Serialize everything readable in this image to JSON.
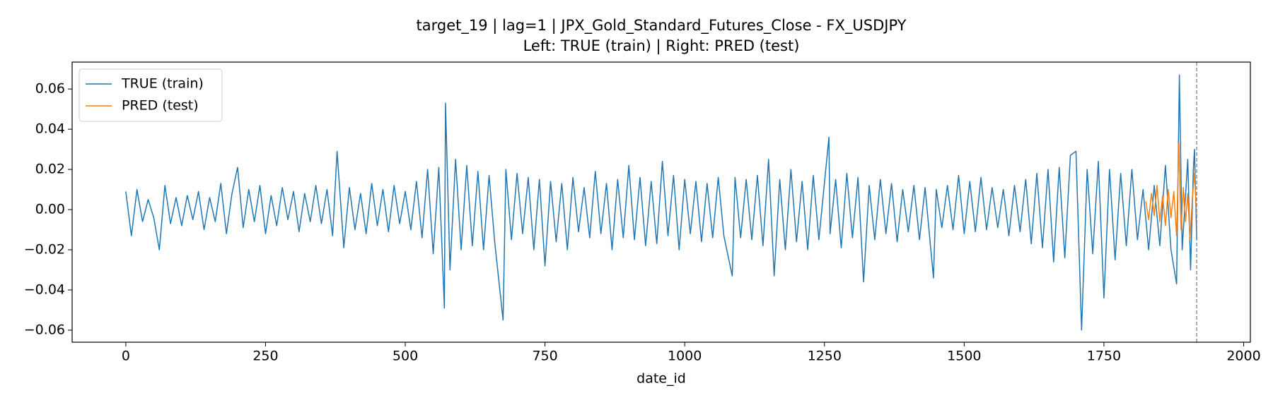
{
  "chart_data": {
    "type": "line",
    "title": "target_19 | lag=1 | JPX_Gold_Standard_Futures_Close - FX_USDJPY",
    "subtitle": "Left: TRUE (train) | Right: PRED (test)",
    "x_label": "date_id",
    "xlim": [
      -96,
      2012
    ],
    "ylim": [
      -0.066,
      0.0734
    ],
    "xticks": [
      0,
      250,
      500,
      750,
      1000,
      1250,
      1500,
      1750,
      2000
    ],
    "yticks": [
      {
        "value": -0.06,
        "label": "−0.06"
      },
      {
        "value": -0.04,
        "label": "−0.04"
      },
      {
        "value": -0.02,
        "label": "−0.02"
      },
      {
        "value": 0,
        "label": "0.00"
      },
      {
        "value": 0.02,
        "label": "0.02"
      },
      {
        "value": 0.04,
        "label": "0.04"
      },
      {
        "value": 0.06,
        "label": "0.06"
      }
    ],
    "legend": "upper left",
    "vline_x": 1916,
    "vline_color": "#7f7f7f",
    "series": [
      {
        "name": "TRUE (train)",
        "color": "#1f77b4",
        "x": [
          0,
          10,
          20,
          30,
          40,
          50,
          60,
          70,
          80,
          90,
          100,
          110,
          120,
          130,
          140,
          150,
          160,
          170,
          180,
          190,
          200,
          210,
          220,
          230,
          240,
          250,
          260,
          270,
          280,
          290,
          300,
          310,
          320,
          330,
          340,
          350,
          360,
          370,
          378,
          390,
          400,
          410,
          420,
          430,
          440,
          450,
          460,
          470,
          480,
          490,
          500,
          510,
          520,
          530,
          540,
          550,
          560,
          570,
          572,
          580,
          590,
          600,
          610,
          620,
          630,
          640,
          650,
          660,
          675,
          680,
          690,
          700,
          710,
          720,
          730,
          740,
          750,
          760,
          770,
          780,
          790,
          800,
          810,
          820,
          830,
          840,
          850,
          860,
          870,
          880,
          890,
          900,
          910,
          920,
          930,
          940,
          950,
          960,
          970,
          980,
          990,
          1000,
          1010,
          1020,
          1030,
          1040,
          1050,
          1060,
          1070,
          1085,
          1090,
          1100,
          1110,
          1120,
          1130,
          1140,
          1150,
          1160,
          1170,
          1180,
          1190,
          1200,
          1210,
          1220,
          1230,
          1240,
          1258,
          1260,
          1270,
          1280,
          1290,
          1300,
          1310,
          1320,
          1330,
          1340,
          1350,
          1360,
          1370,
          1380,
          1390,
          1400,
          1410,
          1420,
          1430,
          1445,
          1450,
          1460,
          1470,
          1480,
          1490,
          1500,
          1510,
          1520,
          1530,
          1540,
          1550,
          1560,
          1570,
          1580,
          1590,
          1600,
          1610,
          1620,
          1630,
          1640,
          1650,
          1660,
          1670,
          1680,
          1690,
          1700,
          1710,
          1720,
          1730,
          1740,
          1750,
          1760,
          1770,
          1780,
          1790,
          1800,
          1810,
          1820,
          1830,
          1840,
          1850,
          1860,
          1870,
          1880,
          1885,
          1890,
          1900,
          1905,
          1910,
          1912,
          1916
        ],
        "values": [
          0.009,
          -0.013,
          0.01,
          -0.006,
          0.005,
          -0.004,
          -0.02,
          0.012,
          -0.007,
          0.006,
          -0.008,
          0.007,
          -0.005,
          0.009,
          -0.01,
          0.006,
          -0.006,
          0.013,
          -0.012,
          0.008,
          0.021,
          -0.009,
          0.01,
          -0.006,
          0.012,
          -0.012,
          0.007,
          -0.008,
          0.011,
          -0.005,
          0.009,
          -0.011,
          0.008,
          -0.006,
          0.012,
          -0.007,
          0.01,
          -0.013,
          0.029,
          -0.019,
          0.011,
          -0.01,
          0.008,
          -0.012,
          0.013,
          -0.008,
          0.01,
          -0.011,
          0.012,
          -0.007,
          0.009,
          -0.01,
          0.014,
          -0.014,
          0.02,
          -0.022,
          0.021,
          -0.049,
          0.053,
          -0.03,
          0.025,
          -0.02,
          0.022,
          -0.018,
          0.019,
          -0.02,
          0.017,
          -0.016,
          -0.055,
          0.02,
          -0.015,
          0.018,
          -0.012,
          0.016,
          -0.02,
          0.015,
          -0.028,
          0.014,
          -0.016,
          0.013,
          -0.02,
          0.016,
          -0.011,
          0.011,
          -0.014,
          0.019,
          -0.012,
          0.013,
          -0.02,
          0.015,
          -0.014,
          0.022,
          -0.015,
          0.016,
          -0.018,
          0.014,
          -0.017,
          0.024,
          -0.013,
          0.017,
          -0.02,
          0.015,
          -0.012,
          0.014,
          -0.016,
          0.013,
          -0.014,
          0.016,
          -0.013,
          -0.033,
          0.016,
          -0.014,
          0.015,
          -0.015,
          0.017,
          -0.018,
          0.025,
          -0.033,
          0.015,
          -0.02,
          0.02,
          -0.016,
          0.014,
          -0.02,
          0.017,
          -0.015,
          0.036,
          -0.012,
          0.015,
          -0.019,
          0.018,
          -0.014,
          0.016,
          -0.036,
          0.012,
          -0.015,
          0.015,
          -0.012,
          0.013,
          -0.016,
          0.01,
          -0.011,
          0.012,
          -0.015,
          0.011,
          -0.034,
          0.01,
          -0.009,
          0.012,
          -0.01,
          0.017,
          -0.012,
          0.014,
          -0.011,
          0.016,
          -0.01,
          0.011,
          -0.009,
          0.01,
          -0.013,
          0.012,
          -0.011,
          0.015,
          -0.017,
          0.018,
          -0.019,
          0.02,
          -0.026,
          0.021,
          -0.024,
          0.027,
          0.029,
          -0.06,
          0.02,
          -0.022,
          0.024,
          -0.044,
          0.02,
          -0.025,
          0.018,
          -0.018,
          0.02,
          -0.015,
          0.01,
          -0.02,
          0.012,
          -0.018,
          0.022,
          -0.02,
          -0.037,
          0.067,
          -0.02,
          0.025,
          -0.03,
          0.02,
          0.03,
          -0.015
        ]
      },
      {
        "name": "PRED (test)",
        "color": "#ff7f0e",
        "x": [
          1825,
          1830,
          1835,
          1840,
          1845,
          1850,
          1855,
          1860,
          1865,
          1870,
          1875,
          1880,
          1884,
          1888,
          1892,
          1896,
          1900,
          1904,
          1908,
          1912,
          1916
        ],
        "values": [
          0.004,
          -0.005,
          0.008,
          -0.003,
          0.012,
          -0.006,
          0.007,
          -0.008,
          0.01,
          -0.004,
          0.009,
          -0.013,
          0.033,
          -0.01,
          0.011,
          -0.006,
          0.008,
          -0.015,
          0.005,
          0.018,
          -0.004
        ]
      }
    ]
  }
}
